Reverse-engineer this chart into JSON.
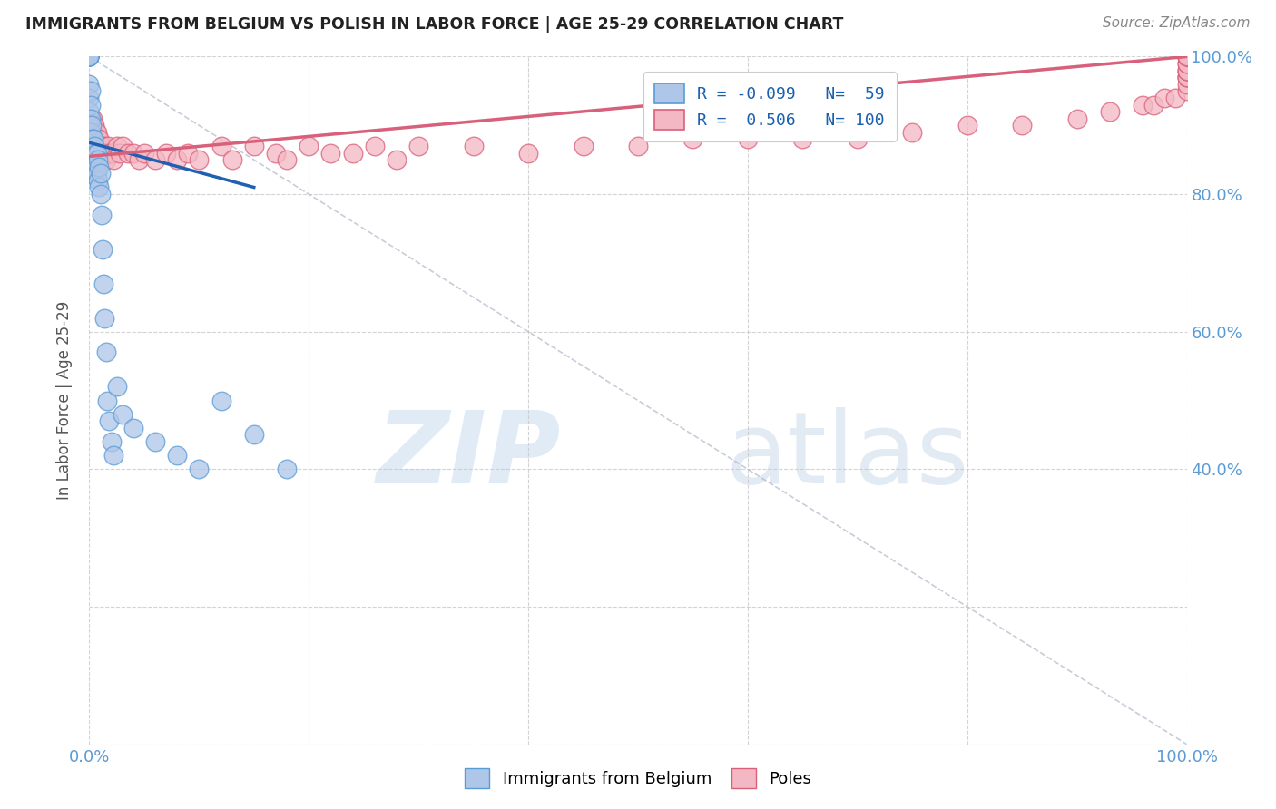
{
  "title": "IMMIGRANTS FROM BELGIUM VS POLISH IN LABOR FORCE | AGE 25-29 CORRELATION CHART",
  "source": "Source: ZipAtlas.com",
  "ylabel": "In Labor Force | Age 25-29",
  "legend_label_belgium": "Immigrants from Belgium",
  "legend_label_poles": "Poles",
  "xlim": [
    0.0,
    1.0
  ],
  "ylim": [
    0.0,
    1.0
  ],
  "belgium_color": "#aec6e8",
  "poles_color": "#f4b8c4",
  "belgium_edge_color": "#5b9bd5",
  "poles_edge_color": "#d9607a",
  "belgium_R": -0.099,
  "belgium_N": 59,
  "poles_R": 0.506,
  "poles_N": 100,
  "background_color": "#ffffff",
  "grid_color": "#c8c8c8",
  "title_color": "#222222",
  "axis_color": "#5b9bd5",
  "belgium_trend_color": "#2060b0",
  "poles_trend_color": "#d9607a",
  "diag_color": "#b0b8c8",
  "belgium_scatter_x": [
    0.0,
    0.0,
    0.0,
    0.0,
    0.0,
    0.0,
    0.0,
    0.0,
    0.0,
    0.0,
    0.0,
    0.0,
    0.0,
    0.0,
    0.0,
    0.0,
    0.0,
    0.0,
    0.001,
    0.001,
    0.001,
    0.001,
    0.001,
    0.002,
    0.002,
    0.003,
    0.003,
    0.004,
    0.004,
    0.005,
    0.005,
    0.006,
    0.006,
    0.007,
    0.007,
    0.008,
    0.008,
    0.009,
    0.009,
    0.01,
    0.01,
    0.011,
    0.012,
    0.013,
    0.014,
    0.015,
    0.016,
    0.018,
    0.02,
    0.022,
    0.025,
    0.03,
    0.04,
    0.06,
    0.08,
    0.1,
    0.12,
    0.15,
    0.18
  ],
  "belgium_scatter_y": [
    1.0,
    1.0,
    1.0,
    1.0,
    1.0,
    1.0,
    1.0,
    1.0,
    0.96,
    0.94,
    0.92,
    0.9,
    0.88,
    0.87,
    0.86,
    0.85,
    0.84,
    0.83,
    0.95,
    0.93,
    0.91,
    0.89,
    0.87,
    0.9,
    0.86,
    0.88,
    0.85,
    0.88,
    0.86,
    0.87,
    0.85,
    0.86,
    0.84,
    0.86,
    0.83,
    0.85,
    0.82,
    0.84,
    0.81,
    0.83,
    0.8,
    0.77,
    0.72,
    0.67,
    0.62,
    0.57,
    0.5,
    0.47,
    0.44,
    0.42,
    0.52,
    0.48,
    0.46,
    0.44,
    0.42,
    0.4,
    0.5,
    0.45,
    0.4
  ],
  "poles_scatter_x": [
    0.0,
    0.0,
    0.0,
    0.0,
    0.001,
    0.001,
    0.001,
    0.002,
    0.002,
    0.002,
    0.003,
    0.003,
    0.003,
    0.004,
    0.004,
    0.005,
    0.005,
    0.005,
    0.006,
    0.006,
    0.006,
    0.007,
    0.007,
    0.007,
    0.008,
    0.008,
    0.009,
    0.009,
    0.01,
    0.01,
    0.01,
    0.011,
    0.012,
    0.013,
    0.014,
    0.015,
    0.015,
    0.016,
    0.017,
    0.018,
    0.02,
    0.022,
    0.025,
    0.028,
    0.03,
    0.035,
    0.04,
    0.045,
    0.05,
    0.06,
    0.07,
    0.08,
    0.09,
    0.1,
    0.12,
    0.13,
    0.15,
    0.17,
    0.18,
    0.2,
    0.22,
    0.24,
    0.26,
    0.28,
    0.3,
    0.35,
    0.4,
    0.45,
    0.5,
    0.55,
    0.6,
    0.65,
    0.7,
    0.75,
    0.8,
    0.85,
    0.9,
    0.93,
    0.96,
    0.97,
    0.98,
    0.99,
    1.0,
    1.0,
    1.0,
    1.0,
    1.0,
    1.0,
    1.0,
    1.0,
    1.0,
    1.0,
    1.0,
    1.0,
    1.0,
    1.0,
    1.0,
    1.0,
    1.0,
    1.0
  ],
  "poles_scatter_y": [
    0.9,
    0.88,
    0.87,
    0.86,
    0.91,
    0.89,
    0.88,
    0.9,
    0.88,
    0.87,
    0.91,
    0.89,
    0.87,
    0.9,
    0.88,
    0.9,
    0.88,
    0.86,
    0.89,
    0.87,
    0.86,
    0.89,
    0.87,
    0.86,
    0.88,
    0.87,
    0.88,
    0.86,
    0.87,
    0.86,
    0.85,
    0.87,
    0.86,
    0.87,
    0.86,
    0.86,
    0.85,
    0.86,
    0.87,
    0.86,
    0.86,
    0.85,
    0.87,
    0.86,
    0.87,
    0.86,
    0.86,
    0.85,
    0.86,
    0.85,
    0.86,
    0.85,
    0.86,
    0.85,
    0.87,
    0.85,
    0.87,
    0.86,
    0.85,
    0.87,
    0.86,
    0.86,
    0.87,
    0.85,
    0.87,
    0.87,
    0.86,
    0.87,
    0.87,
    0.88,
    0.88,
    0.88,
    0.88,
    0.89,
    0.9,
    0.9,
    0.91,
    0.92,
    0.93,
    0.93,
    0.94,
    0.94,
    0.95,
    0.96,
    0.97,
    0.97,
    0.97,
    0.98,
    0.98,
    0.98,
    0.99,
    0.99,
    1.0,
    1.0,
    1.0,
    1.0,
    1.0,
    1.0,
    1.0,
    1.0
  ]
}
